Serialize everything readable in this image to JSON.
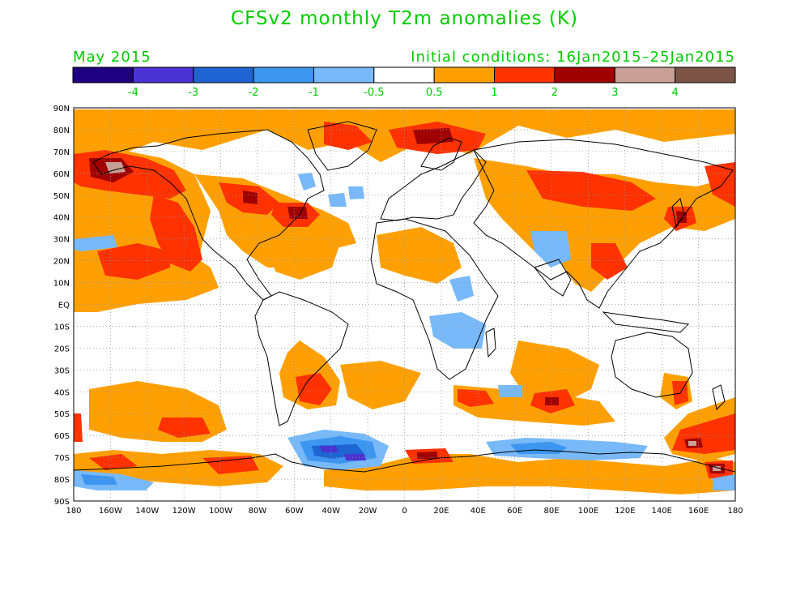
{
  "title": "CFSv2 monthly T2m anomalies (K)",
  "subtitle_left": "May 2015",
  "subtitle_right": "Initial conditions: 16Jan2015–25Jan2015",
  "legend": {
    "bins": [
      {
        "color": "#1e0082"
      },
      {
        "color": "#4b32d2"
      },
      {
        "color": "#1e64d2"
      },
      {
        "color": "#3c96f0"
      },
      {
        "color": "#78b9fa"
      },
      {
        "color": "#ffffff"
      },
      {
        "color": "#ffa000"
      },
      {
        "color": "#ff3200"
      },
      {
        "color": "#a00000"
      },
      {
        "color": "#c8a096"
      },
      {
        "color": "#7d5546"
      }
    ],
    "labels": [
      "-4",
      "-3",
      "-2",
      "-1",
      "-0.5",
      "0.5",
      "1",
      "2",
      "3",
      "4"
    ]
  },
  "map": {
    "lat_labels": [
      "90N",
      "80N",
      "70N",
      "60N",
      "50N",
      "40N",
      "30N",
      "20N",
      "10N",
      "EQ",
      "10S",
      "20S",
      "30S",
      "40S",
      "50S",
      "60S",
      "70S",
      "80S",
      "90S"
    ],
    "lon_labels": [
      "180",
      "160W",
      "140W",
      "120W",
      "100W",
      "80W",
      "60W",
      "40W",
      "20W",
      "0",
      "20E",
      "40E",
      "60E",
      "80E",
      "100E",
      "120E",
      "140E",
      "160E",
      "180"
    ]
  },
  "colors": {
    "text_green": "#00cc00",
    "warm1": "#ffa000",
    "warm2": "#ff3200",
    "warm3": "#a00000",
    "warm4": "#c8a096",
    "cool1": "#78b9fa",
    "cool2": "#3c96f0",
    "cool3": "#1e64d2",
    "cool4": "#4b32d2"
  }
}
